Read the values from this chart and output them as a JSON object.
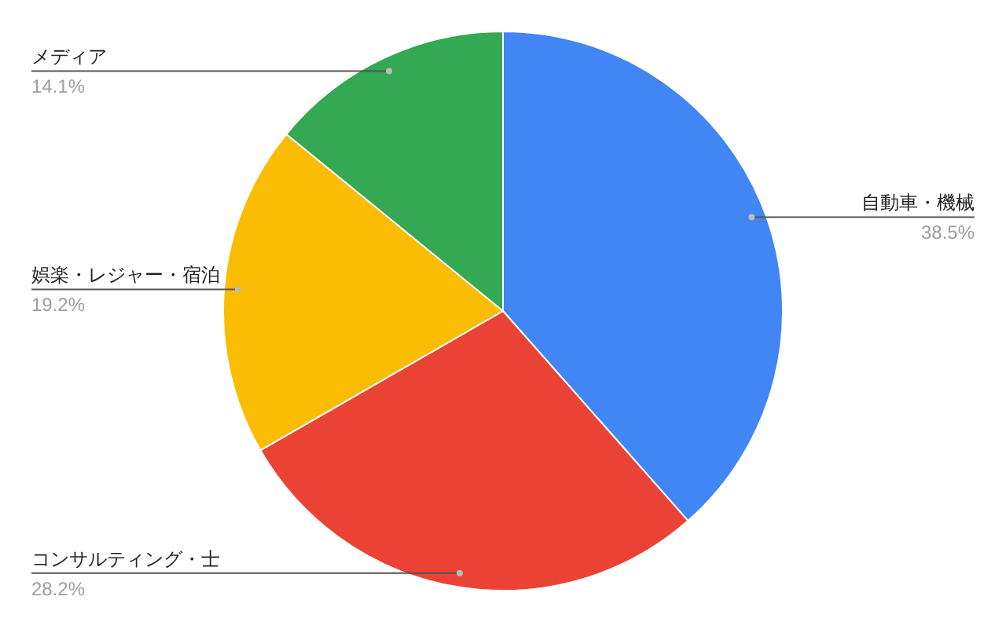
{
  "chart_data": {
    "type": "pie",
    "categories": [
      "自動車・機械",
      "コンサルティング・士",
      "娯楽・レジャー・宿泊",
      "メディア"
    ],
    "values": [
      38.5,
      28.2,
      19.2,
      14.1
    ],
    "colors": [
      "#4285f4",
      "#ea4335",
      "#fbbc04",
      "#34a853"
    ],
    "value_labels": [
      "38.5%",
      "28.2%",
      "19.2%",
      "14.1%"
    ]
  }
}
